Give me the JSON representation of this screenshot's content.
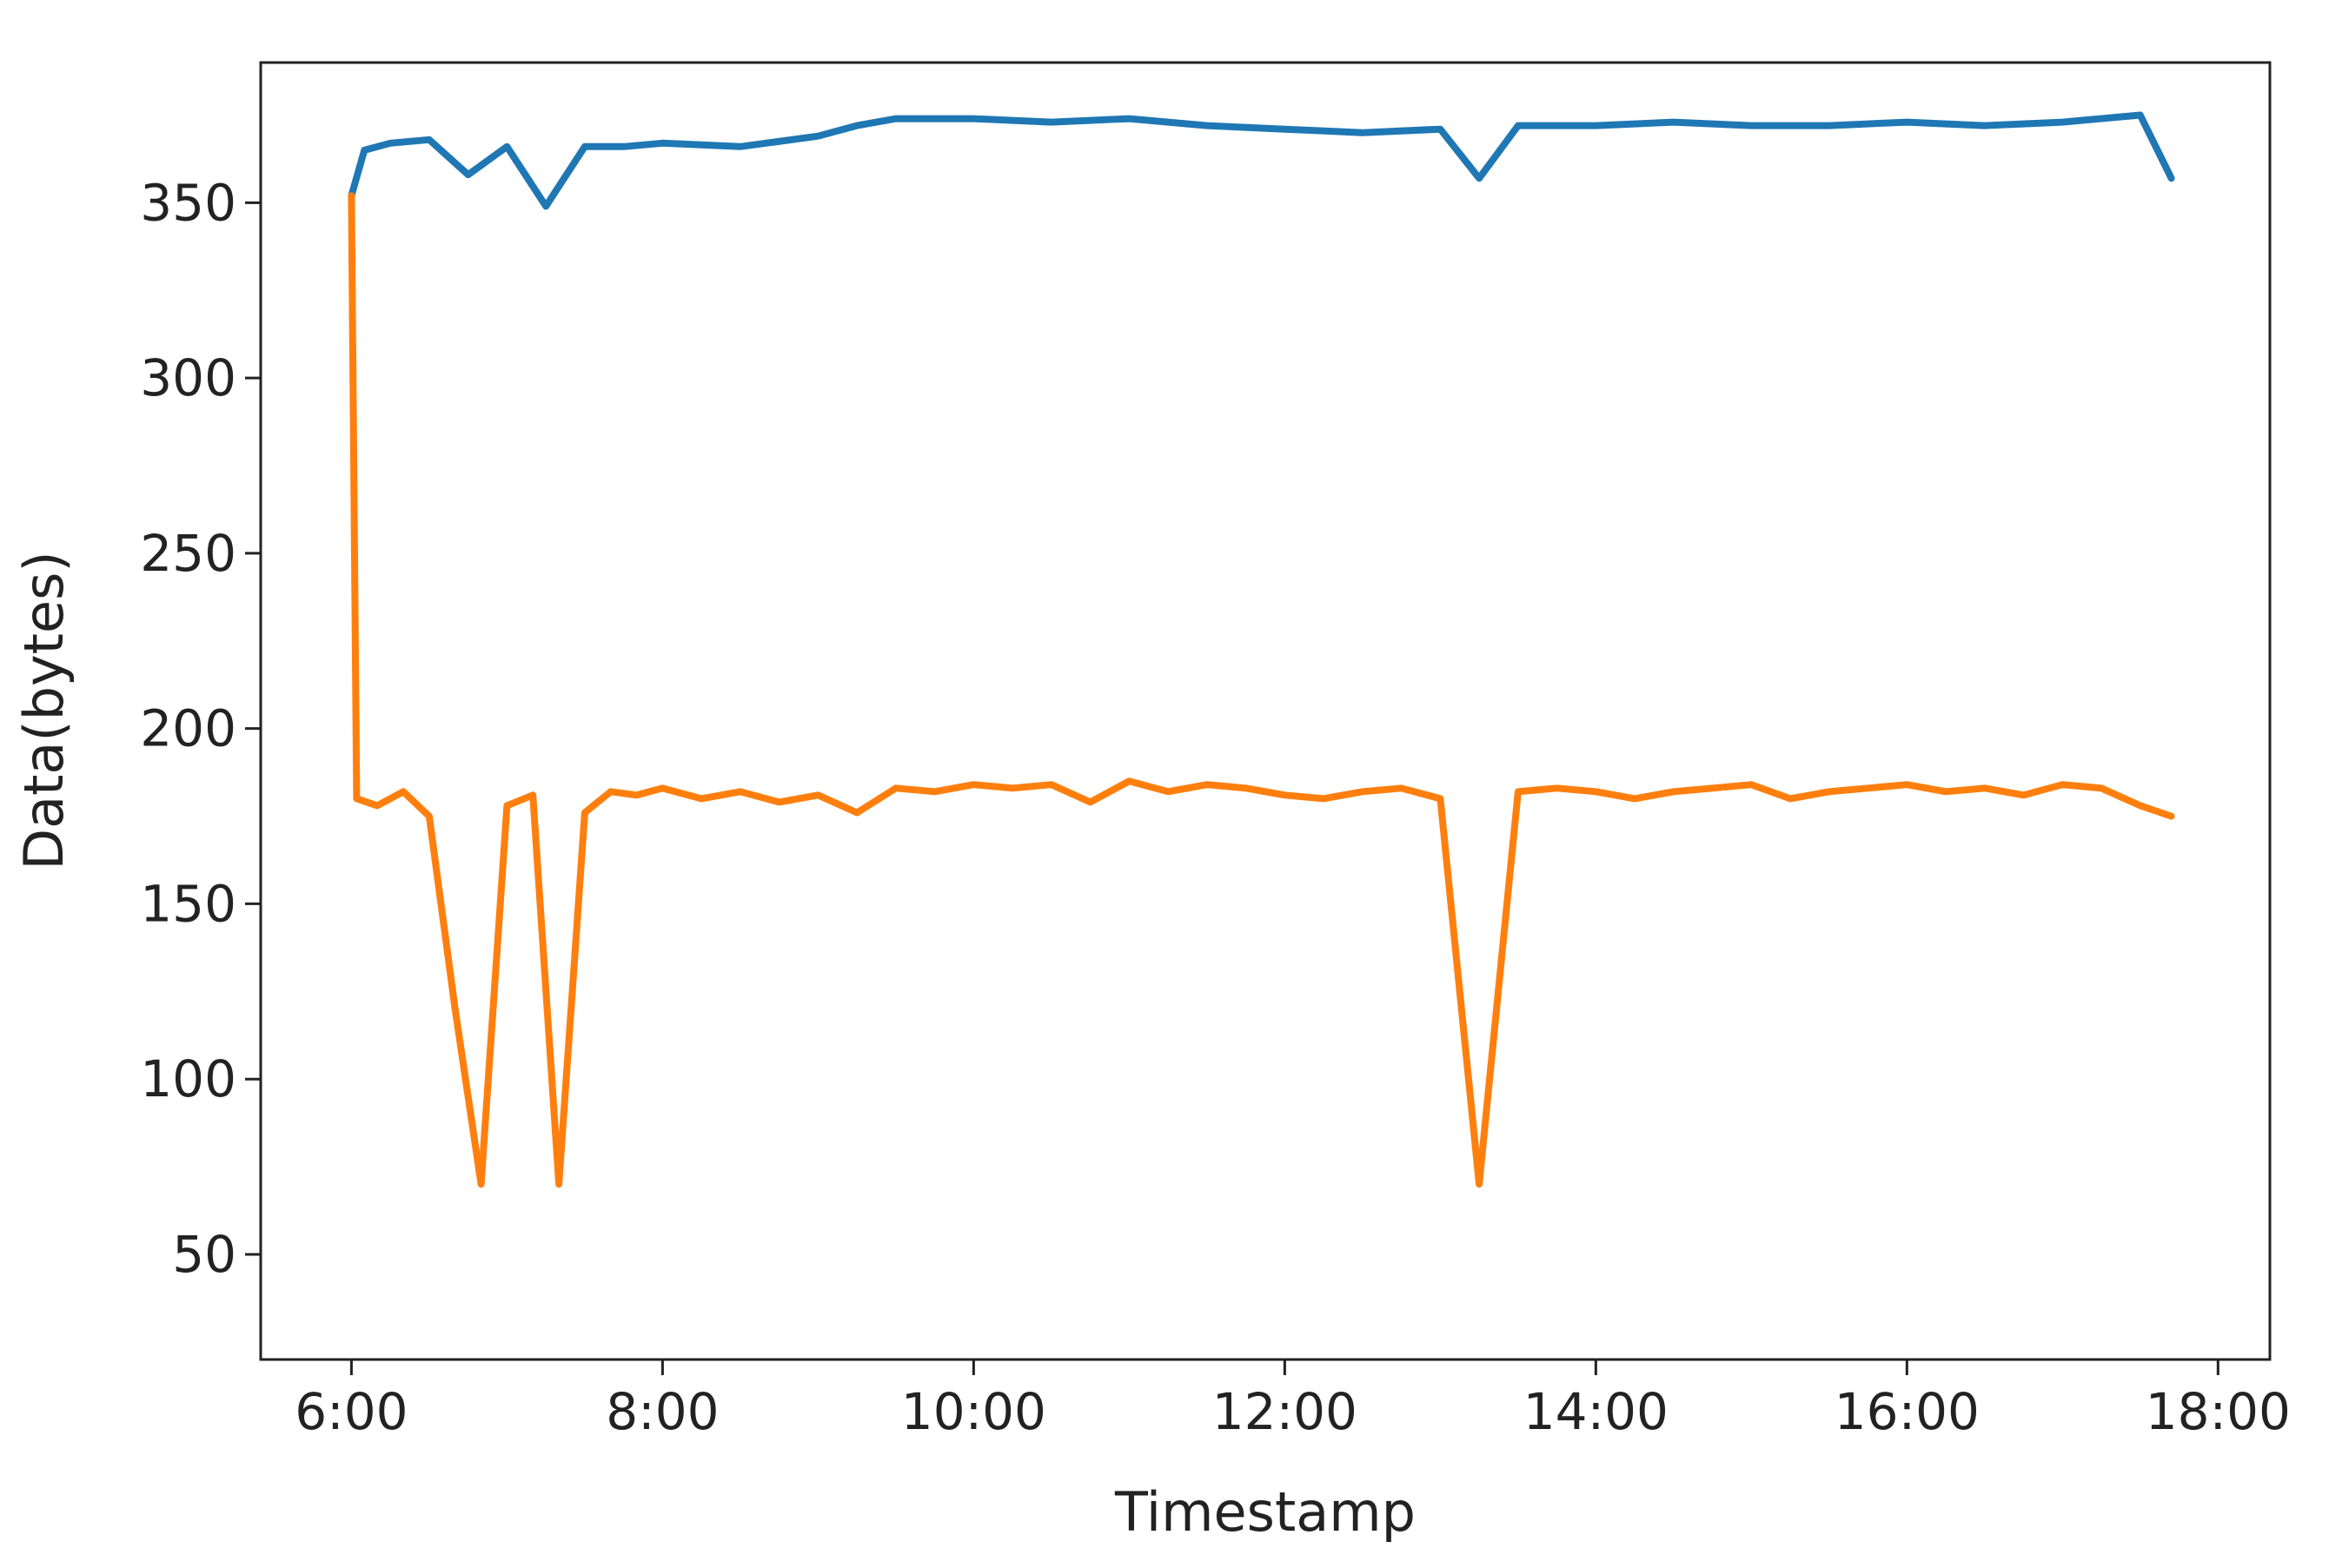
{
  "chart_data": {
    "type": "line",
    "title": "",
    "xlabel": "Timestamp",
    "ylabel": "Data(bytes)",
    "xlim": [
      "05:25",
      "18:20"
    ],
    "ylim": [
      20,
      390
    ],
    "x_ticks": [
      "6:00",
      "8:00",
      "10:00",
      "12:00",
      "14:00",
      "16:00",
      "18:00"
    ],
    "y_ticks": [
      50,
      100,
      150,
      200,
      250,
      300,
      350
    ],
    "grid": false,
    "legend": "none",
    "colors": {
      "series_1": "#1f77b4",
      "series_2": "#ff7f0e"
    },
    "series": [
      {
        "x": [
          "6:00",
          "6:05",
          "6:15",
          "6:30",
          "6:45",
          "7:00",
          "7:15",
          "7:30",
          "7:45",
          "8:00",
          "8:30",
          "9:00",
          "9:15",
          "9:30",
          "10:00",
          "10:30",
          "11:00",
          "11:30",
          "12:00",
          "12:30",
          "13:00",
          "13:15",
          "13:30",
          "14:00",
          "14:30",
          "15:00",
          "15:30",
          "16:00",
          "16:30",
          "17:00",
          "17:30",
          "17:42"
        ],
        "y": [
          352,
          365,
          367,
          368,
          358,
          366,
          349,
          366,
          366,
          367,
          366,
          369,
          372,
          374,
          374,
          373,
          374,
          372,
          371,
          370,
          371,
          357,
          372,
          372,
          373,
          372,
          372,
          373,
          372,
          373,
          375,
          357
        ]
      },
      {
        "x": [
          "6:00",
          "6:02",
          "6:10",
          "6:20",
          "6:30",
          "6:40",
          "6:50",
          "7:00",
          "7:10",
          "7:20",
          "7:30",
          "7:40",
          "7:50",
          "8:00",
          "8:15",
          "8:30",
          "8:45",
          "9:00",
          "9:15",
          "9:30",
          "9:45",
          "10:00",
          "10:15",
          "10:30",
          "10:45",
          "11:00",
          "11:15",
          "11:30",
          "11:45",
          "12:00",
          "12:15",
          "12:30",
          "12:45",
          "13:00",
          "13:15",
          "13:30",
          "13:45",
          "14:00",
          "14:15",
          "14:30",
          "14:45",
          "15:00",
          "15:15",
          "15:30",
          "15:45",
          "16:00",
          "16:15",
          "16:30",
          "16:45",
          "17:00",
          "17:15",
          "17:30",
          "17:42"
        ],
        "y": [
          352,
          180,
          178,
          182,
          175,
          120,
          70,
          178,
          181,
          70,
          176,
          182,
          181,
          183,
          180,
          182,
          179,
          181,
          176,
          183,
          182,
          184,
          183,
          184,
          179,
          185,
          182,
          184,
          183,
          181,
          180,
          182,
          183,
          180,
          70,
          182,
          183,
          182,
          180,
          182,
          183,
          184,
          180,
          182,
          183,
          184,
          182,
          183,
          181,
          184,
          183,
          178,
          175
        ]
      }
    ]
  }
}
